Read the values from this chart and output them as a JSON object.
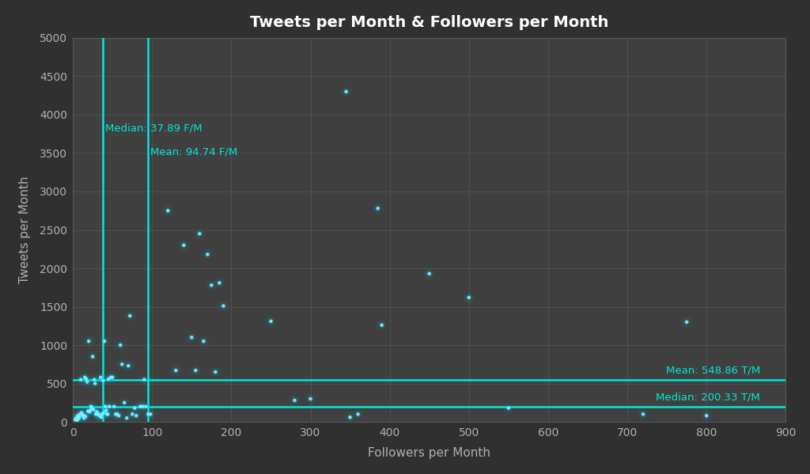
{
  "title": "Tweets per Month & Followers per Month",
  "xlabel": "Followers per Month",
  "ylabel": "Tweets per Month",
  "xlim": [
    0,
    900
  ],
  "ylim": [
    0,
    5000
  ],
  "xticks": [
    0,
    100,
    200,
    300,
    400,
    500,
    600,
    700,
    800,
    900
  ],
  "yticks": [
    0,
    500,
    1000,
    1500,
    2000,
    2500,
    3000,
    3500,
    4000,
    4500,
    5000
  ],
  "bg_color": "#303030",
  "plot_bg_color": "#404040",
  "grid_color": "#585858",
  "text_color": "#b0b0b0",
  "scatter_color": "#00cfff",
  "line_color": "#00e8d8",
  "median_followers": 37.89,
  "mean_followers": 94.74,
  "mean_tweets": 548.86,
  "median_tweets": 200.33,
  "scatter_x": [
    3,
    4,
    5,
    6,
    7,
    8,
    9,
    10,
    11,
    12,
    13,
    14,
    15,
    16,
    17,
    18,
    19,
    20,
    21,
    22,
    23,
    24,
    25,
    26,
    27,
    28,
    29,
    30,
    31,
    32,
    33,
    34,
    35,
    36,
    37,
    38,
    39,
    40,
    41,
    42,
    43,
    44,
    45,
    46,
    48,
    50,
    52,
    54,
    56,
    58,
    60,
    62,
    65,
    68,
    70,
    72,
    75,
    78,
    80,
    85,
    88,
    90,
    92,
    95,
    98,
    120,
    130,
    140,
    150,
    155,
    160,
    165,
    170,
    175,
    180,
    185,
    190,
    250,
    280,
    300,
    345,
    350,
    360,
    385,
    390,
    450,
    500,
    550,
    720,
    775,
    800
  ],
  "scatter_y": [
    30,
    50,
    20,
    80,
    40,
    60,
    100,
    550,
    120,
    80,
    90,
    50,
    580,
    70,
    560,
    520,
    140,
    1050,
    130,
    150,
    200,
    180,
    850,
    160,
    550,
    500,
    100,
    130,
    110,
    100,
    90,
    80,
    580,
    60,
    100,
    540,
    120,
    1050,
    200,
    150,
    100,
    100,
    560,
    200,
    580,
    580,
    200,
    100,
    100,
    80,
    1000,
    750,
    250,
    50,
    730,
    1380,
    100,
    180,
    80,
    200,
    200,
    550,
    200,
    100,
    100,
    2750,
    670,
    2300,
    1100,
    670,
    2450,
    1050,
    2180,
    1780,
    650,
    1810,
    1510,
    1310,
    280,
    300,
    4300,
    60,
    100,
    2780,
    1260,
    1930,
    1620,
    180,
    100,
    1300,
    80
  ],
  "median_label": "Median: 37.89 F/M",
  "mean_f_label": "Mean: 94.74 F/M",
  "mean_t_label": "Mean: 548.86 T/M",
  "median_t_label": "Median: 200.33 T/M"
}
